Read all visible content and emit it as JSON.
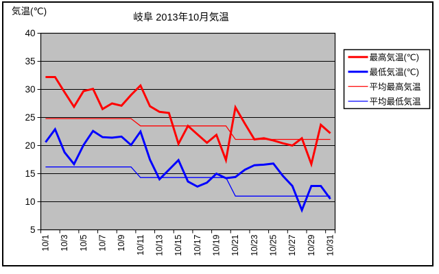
{
  "title": "岐阜 2013年10月気温",
  "y_axis_label": "気温(℃)",
  "colors": {
    "max_line": "#ff0000",
    "min_line": "#0000ff",
    "plot_background": "#c0c0c0",
    "grid": "#000000",
    "page_background": "#ffffff",
    "legend_background": "#ffffff",
    "border": "#000000"
  },
  "chart_data": {
    "type": "line",
    "title": "岐阜 2013年10月気温",
    "ylabel": "気温(℃)",
    "ylim": [
      5,
      40
    ],
    "y_ticks": [
      5,
      10,
      15,
      20,
      25,
      30,
      35,
      40
    ],
    "grid": true,
    "plot_bg": "#c0c0c0",
    "legend_position": "right",
    "categories": [
      "10/1",
      "10/2",
      "10/3",
      "10/4",
      "10/5",
      "10/6",
      "10/7",
      "10/8",
      "10/9",
      "10/10",
      "10/11",
      "10/12",
      "10/13",
      "10/14",
      "10/15",
      "10/16",
      "10/17",
      "10/18",
      "10/19",
      "10/20",
      "10/21",
      "10/22",
      "10/23",
      "10/24",
      "10/25",
      "10/26",
      "10/27",
      "10/28",
      "10/29",
      "10/30",
      "10/31"
    ],
    "x_tick_labels": [
      "10/1",
      "10/3",
      "10/5",
      "10/7",
      "10/9",
      "10/11",
      "10/13",
      "10/15",
      "10/17",
      "10/19",
      "10/21",
      "10/23",
      "10/25",
      "10/27",
      "10/29",
      "10/31"
    ],
    "series": [
      {
        "name": "最高気温(℃)",
        "color": "#ff0000",
        "thickness": "thick",
        "values": [
          32.2,
          32.2,
          29.5,
          26.9,
          29.7,
          30.1,
          26.5,
          27.5,
          27.1,
          29.0,
          30.7,
          27.0,
          26.0,
          25.8,
          20.3,
          23.5,
          22.0,
          20.5,
          21.9,
          17.4,
          26.8,
          23.9,
          21.1,
          21.3,
          20.9,
          20.4,
          20.0,
          21.3,
          16.7,
          23.7,
          22.2
        ]
      },
      {
        "name": "最低気温(℃)",
        "color": "#0000ff",
        "thickness": "thick",
        "values": [
          20.6,
          22.9,
          18.8,
          16.7,
          20.1,
          22.6,
          21.5,
          21.4,
          21.6,
          20.1,
          22.5,
          17.5,
          14.0,
          15.7,
          17.4,
          13.6,
          12.7,
          13.4,
          15.0,
          14.2,
          14.4,
          15.7,
          16.5,
          16.6,
          16.8,
          14.6,
          12.8,
          8.5,
          12.8,
          12.8,
          10.5
        ]
      },
      {
        "name": "平均最高気温",
        "color": "#ff0000",
        "thickness": "thin",
        "values": [
          24.8,
          24.8,
          24.8,
          24.8,
          24.8,
          24.8,
          24.8,
          24.8,
          24.8,
          24.8,
          23.5,
          23.5,
          23.5,
          23.5,
          23.5,
          23.5,
          23.5,
          23.5,
          23.5,
          23.5,
          21.1,
          21.1,
          21.1,
          21.1,
          21.1,
          21.1,
          21.1,
          21.1,
          21.1,
          21.1,
          21.1
        ]
      },
      {
        "name": "平均最低気温",
        "color": "#0000ff",
        "thickness": "thin",
        "values": [
          16.2,
          16.2,
          16.2,
          16.2,
          16.2,
          16.2,
          16.2,
          16.2,
          16.2,
          16.2,
          14.3,
          14.3,
          14.3,
          14.3,
          14.3,
          14.3,
          14.3,
          14.3,
          14.3,
          14.3,
          11.0,
          11.0,
          11.0,
          11.0,
          11.0,
          11.0,
          11.0,
          11.0,
          11.0,
          11.0,
          11.0
        ]
      }
    ]
  }
}
